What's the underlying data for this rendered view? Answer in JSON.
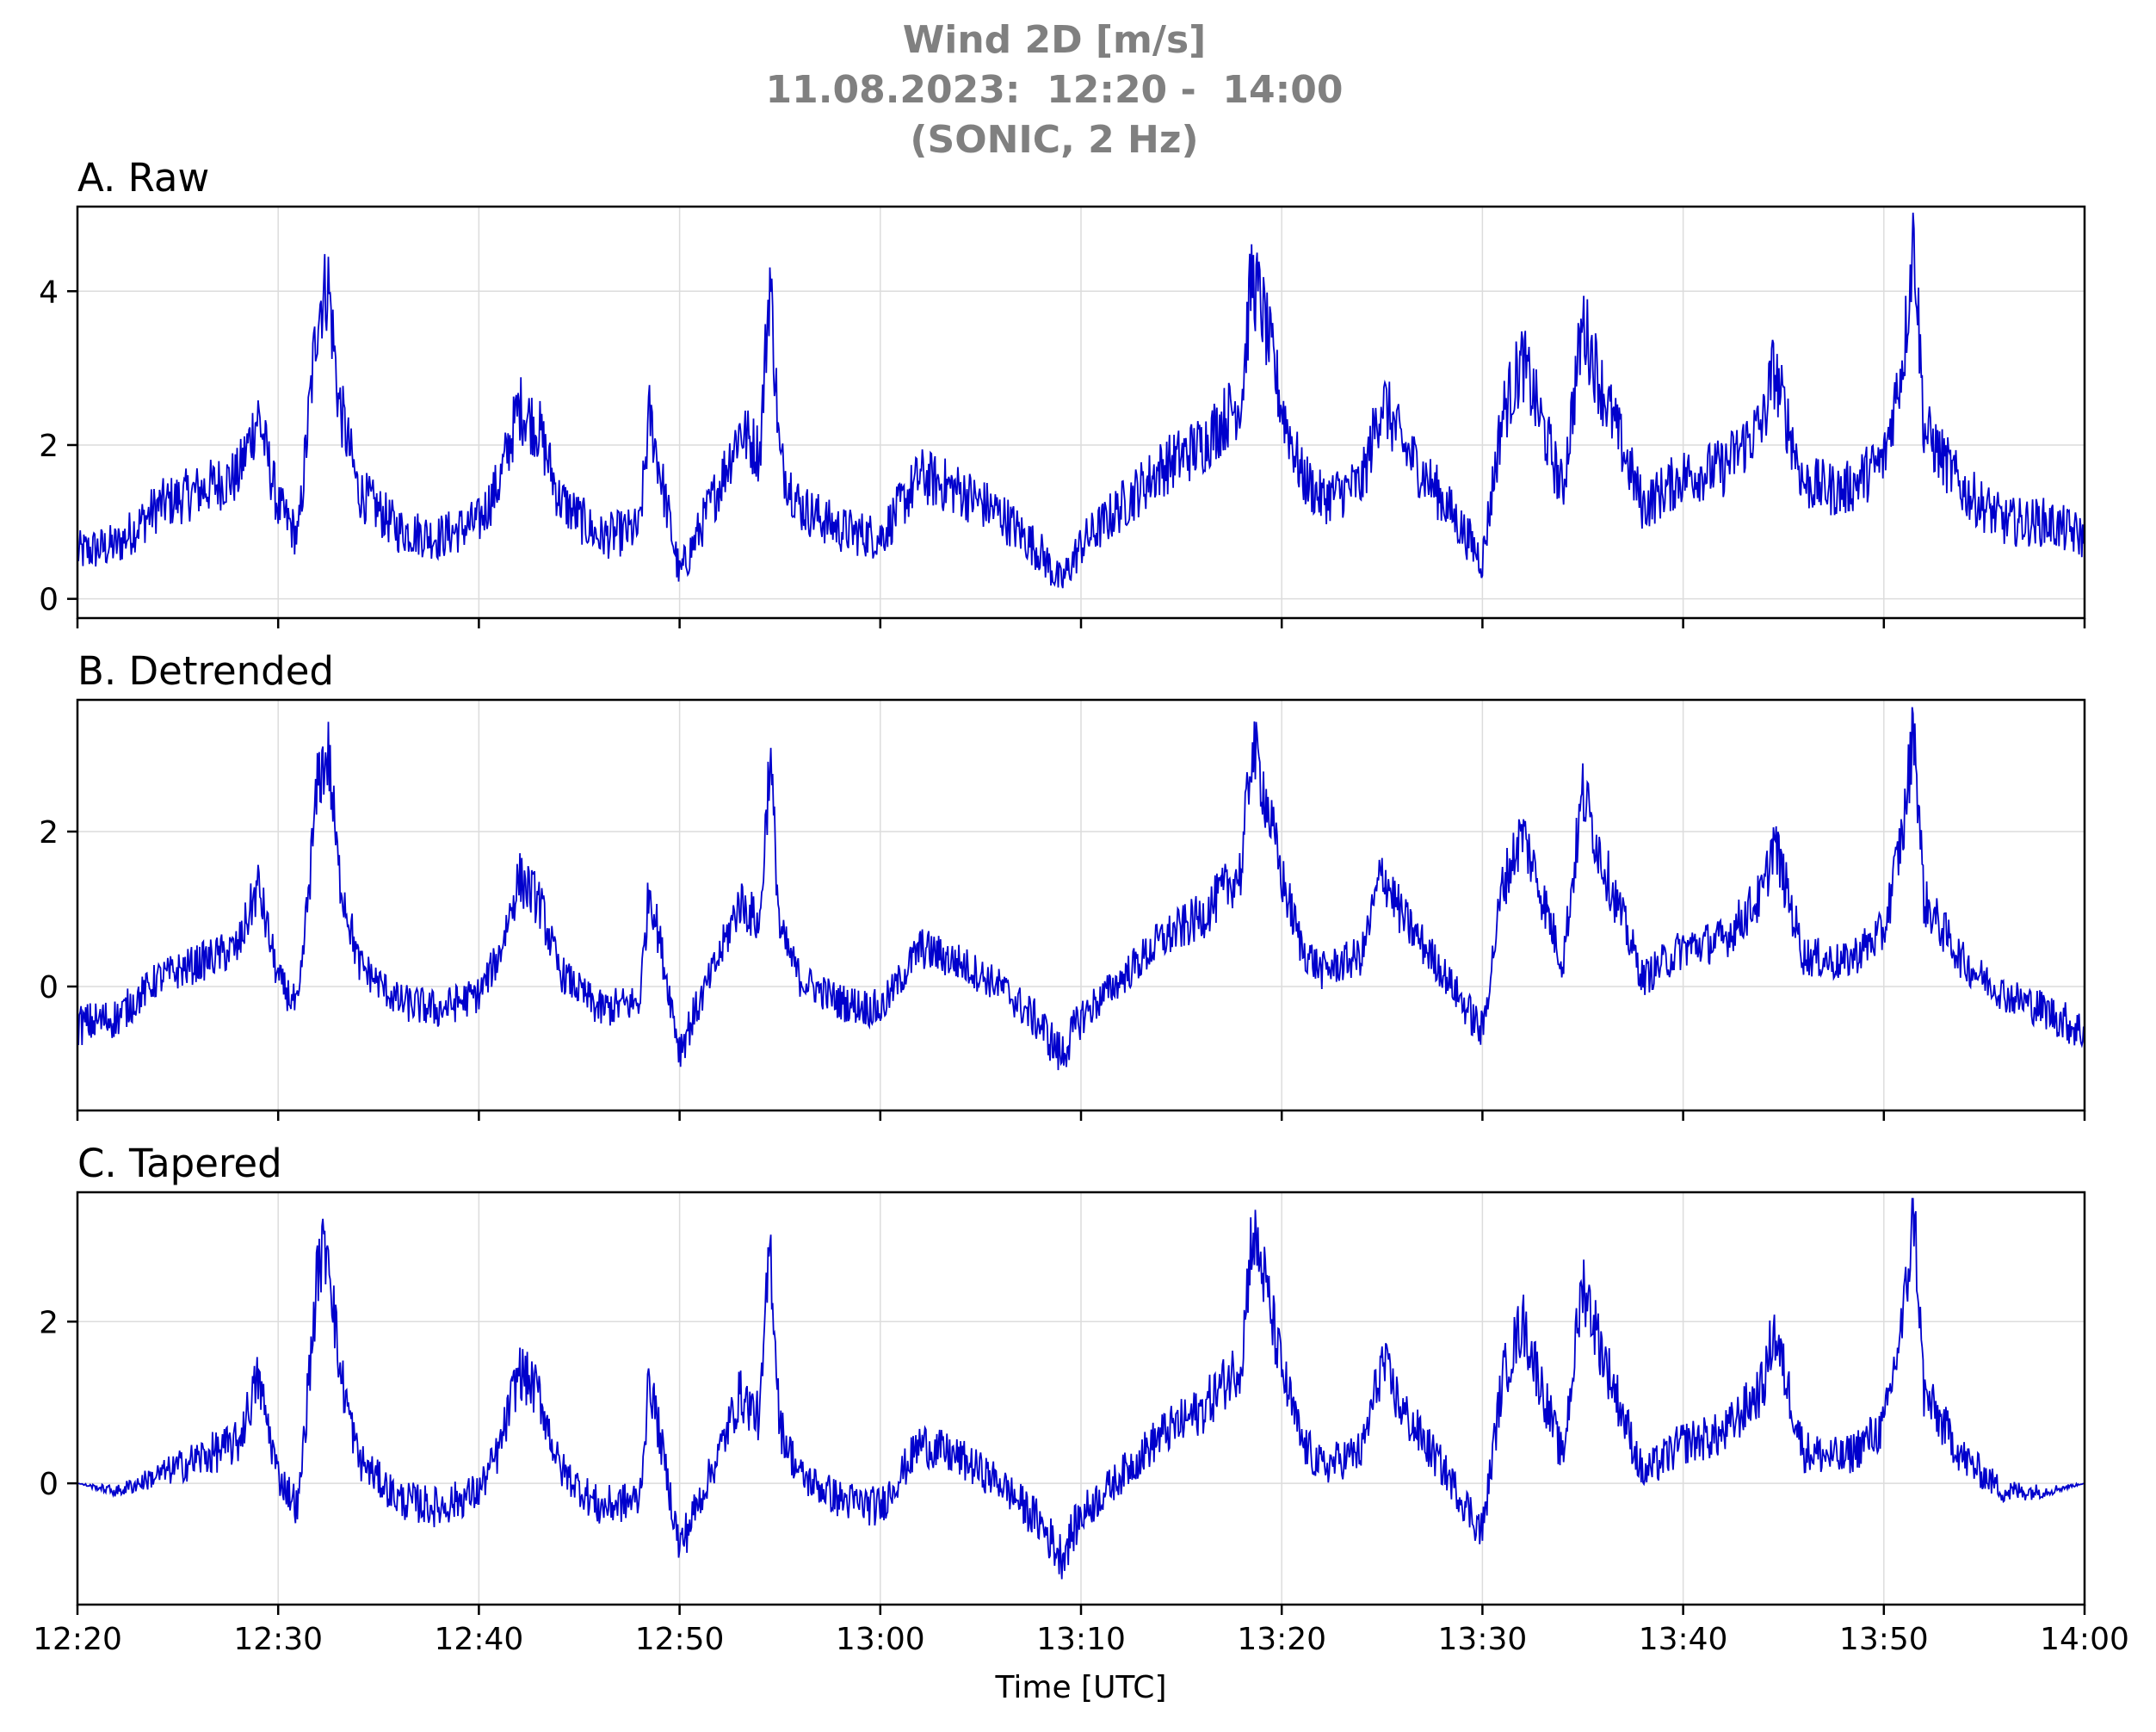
{
  "title": {
    "line1": "Wind 2D [m/s]",
    "line2": "11.08.2023:  12:20 -  14:00",
    "line3": "(SONIC, 2 Hz)"
  },
  "colors": {
    "line": "#0000cc",
    "grid": "#dcdcdc",
    "title": "#808080"
  },
  "chart_data": [
    {
      "type": "line",
      "title": "A. Raw",
      "xlabel": "",
      "ylabel": "",
      "ylim": [
        -0.25,
        5.1
      ],
      "yticks": [
        0,
        2,
        4
      ],
      "grid": true,
      "x_range": [
        "12:20",
        "14:00"
      ],
      "series": [
        {
          "x": [
            "12:20",
            "12:22",
            "12:24",
            "12:26",
            "12:28",
            "12:29",
            "12:30",
            "12:31",
            "12:32",
            "12:32:30",
            "12:33",
            "12:34",
            "12:36",
            "12:38",
            "12:40",
            "12:41",
            "12:42",
            "12:43",
            "12:44",
            "12:46",
            "12:48",
            "12:48:30",
            "12:50",
            "12:52",
            "12:53",
            "12:54",
            "12:54:30",
            "12:55",
            "12:56",
            "12:58",
            "13:00",
            "13:02",
            "13:04",
            "13:06",
            "13:08",
            "13:09",
            "13:10",
            "13:12",
            "13:14",
            "13:16",
            "13:18",
            "13:18:30",
            "13:19",
            "13:20",
            "13:21",
            "13:22",
            "13:24",
            "13:25",
            "13:26",
            "13:28",
            "13:30",
            "13:31",
            "13:32",
            "13:34",
            "13:35",
            "13:36",
            "13:38",
            "13:40",
            "13:42",
            "13:44",
            "13:44:30",
            "13:46",
            "13:48",
            "13:50",
            "13:51",
            "13:51:30",
            "13:52",
            "13:54",
            "13:56",
            "13:58",
            "14:00"
          ],
          "values": [
            0.6,
            0.7,
            1.2,
            1.4,
            1.6,
            2.4,
            1.2,
            0.8,
            3.8,
            4.1,
            2.6,
            1.4,
            0.9,
            0.8,
            1.0,
            1.5,
            2.5,
            2.2,
            1.3,
            0.8,
            0.9,
            2.4,
            0.3,
            1.5,
            2.2,
            1.9,
            4.2,
            1.8,
            1.2,
            0.9,
            0.8,
            1.6,
            1.4,
            1.1,
            0.6,
            0.2,
            0.7,
            1.2,
            1.7,
            2.0,
            2.6,
            4.2,
            3.8,
            2.5,
            1.6,
            1.3,
            1.5,
            2.6,
            2.0,
            1.3,
            0.5,
            2.4,
            3.1,
            1.4,
            3.6,
            2.7,
            1.2,
            1.6,
            1.7,
            2.3,
            3.0,
            1.5,
            1.4,
            1.8,
            3.2,
            4.8,
            2.2,
            1.4,
            1.0,
            1.0,
            0.8
          ]
        }
      ]
    },
    {
      "type": "line",
      "title": "B. Detrended",
      "xlabel": "",
      "ylabel": "",
      "ylim": [
        -1.6,
        3.7
      ],
      "yticks": [
        0,
        2
      ],
      "grid": true,
      "x_range": [
        "12:20",
        "14:00"
      ],
      "series": [
        {
          "x": [
            "12:20",
            "12:22",
            "12:24",
            "12:26",
            "12:28",
            "12:29",
            "12:30",
            "12:31",
            "12:32",
            "12:32:30",
            "12:33",
            "12:34",
            "12:36",
            "12:38",
            "12:40",
            "12:41",
            "12:42",
            "12:43",
            "12:44",
            "12:46",
            "12:48",
            "12:48:30",
            "12:50",
            "12:52",
            "12:53",
            "12:54",
            "12:54:30",
            "12:55",
            "12:56",
            "12:58",
            "13:00",
            "13:02",
            "13:04",
            "13:06",
            "13:08",
            "13:09",
            "13:10",
            "13:12",
            "13:14",
            "13:16",
            "13:18",
            "13:18:30",
            "13:19",
            "13:20",
            "13:21",
            "13:22",
            "13:24",
            "13:25",
            "13:26",
            "13:28",
            "13:30",
            "13:31",
            "13:32",
            "13:34",
            "13:35",
            "13:36",
            "13:38",
            "13:40",
            "13:42",
            "13:44",
            "13:44:30",
            "13:46",
            "13:48",
            "13:50",
            "13:51",
            "13:51:30",
            "13:52",
            "13:54",
            "13:56",
            "13:58",
            "14:00"
          ],
          "values": [
            -0.5,
            -0.4,
            0.1,
            0.3,
            0.5,
            1.3,
            0.1,
            -0.3,
            2.7,
            3.0,
            1.5,
            0.3,
            -0.2,
            -0.3,
            -0.1,
            0.4,
            1.4,
            1.1,
            0.2,
            -0.3,
            -0.2,
            1.3,
            -0.8,
            0.4,
            1.1,
            0.8,
            3.0,
            0.7,
            0.1,
            -0.2,
            -0.3,
            0.5,
            0.3,
            0.0,
            -0.5,
            -0.9,
            -0.4,
            0.1,
            0.6,
            0.9,
            1.5,
            3.1,
            2.7,
            1.4,
            0.5,
            0.2,
            0.4,
            1.5,
            0.9,
            0.2,
            -0.6,
            1.3,
            2.0,
            0.3,
            2.5,
            1.6,
            0.1,
            0.5,
            0.6,
            1.2,
            1.9,
            0.4,
            0.3,
            0.7,
            2.1,
            3.4,
            1.1,
            0.3,
            -0.1,
            -0.3,
            -0.6
          ]
        }
      ]
    },
    {
      "type": "line",
      "title": "C. Tapered",
      "xlabel": "Time [UTC]",
      "ylabel": "",
      "ylim": [
        -1.5,
        3.6
      ],
      "yticks": [
        0,
        2
      ],
      "grid": true,
      "x_range": [
        "12:20",
        "14:00"
      ],
      "x_ticks": [
        "12:20",
        "12:30",
        "12:40",
        "12:50",
        "13:00",
        "13:10",
        "13:20",
        "13:30",
        "13:40",
        "13:50",
        "14:00"
      ],
      "series": [
        {
          "x": [
            "12:20",
            "12:22",
            "12:24",
            "12:26",
            "12:28",
            "12:29",
            "12:30",
            "12:31",
            "12:32",
            "12:32:30",
            "12:33",
            "12:34",
            "12:36",
            "12:38",
            "12:40",
            "12:41",
            "12:42",
            "12:43",
            "12:44",
            "12:46",
            "12:48",
            "12:48:30",
            "12:50",
            "12:52",
            "12:53",
            "12:54",
            "12:54:30",
            "12:55",
            "12:56",
            "12:58",
            "13:00",
            "13:02",
            "13:04",
            "13:06",
            "13:08",
            "13:09",
            "13:10",
            "13:12",
            "13:14",
            "13:16",
            "13:18",
            "13:18:30",
            "13:19",
            "13:20",
            "13:21",
            "13:22",
            "13:24",
            "13:25",
            "13:26",
            "13:28",
            "13:30",
            "13:31",
            "13:32",
            "13:34",
            "13:35",
            "13:36",
            "13:38",
            "13:40",
            "13:42",
            "13:44",
            "13:44:30",
            "13:46",
            "13:48",
            "13:50",
            "13:51",
            "13:51:30",
            "13:52",
            "13:54",
            "13:56",
            "13:58",
            "14:00"
          ],
          "values": [
            0.0,
            -0.1,
            0.1,
            0.3,
            0.5,
            1.3,
            0.1,
            -0.3,
            2.7,
            3.0,
            1.5,
            0.3,
            -0.2,
            -0.3,
            -0.1,
            0.4,
            1.4,
            1.1,
            0.2,
            -0.3,
            -0.2,
            1.3,
            -0.8,
            0.4,
            1.1,
            0.8,
            3.0,
            0.7,
            0.1,
            -0.2,
            -0.3,
            0.5,
            0.3,
            0.0,
            -0.5,
            -0.9,
            -0.4,
            0.1,
            0.6,
            0.9,
            1.5,
            3.1,
            2.7,
            1.4,
            0.5,
            0.2,
            0.4,
            1.5,
            0.9,
            0.2,
            -0.6,
            1.3,
            2.0,
            0.3,
            2.5,
            1.6,
            0.1,
            0.5,
            0.6,
            1.2,
            1.9,
            0.4,
            0.3,
            0.7,
            2.1,
            3.4,
            1.1,
            0.3,
            -0.1,
            -0.1,
            0.0
          ]
        }
      ]
    }
  ]
}
